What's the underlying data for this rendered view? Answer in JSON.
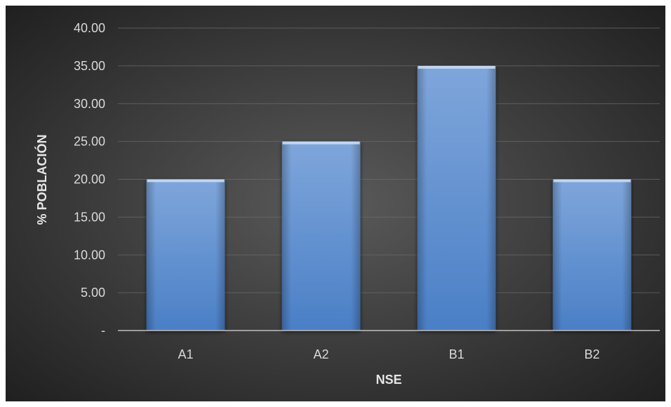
{
  "chart_data": {
    "type": "bar",
    "categories": [
      "A1",
      "A2",
      "B1",
      "B2"
    ],
    "values": [
      20,
      25,
      35,
      20
    ],
    "xlabel": "NSE",
    "ylabel": "% POBLACIÓN",
    "ylim": [
      0,
      40
    ],
    "ytick_labels": [
      "-",
      "5.00",
      "10.00",
      "15.00",
      "20.00",
      "25.00",
      "30.00",
      "35.00",
      "40.00"
    ],
    "grid": true,
    "legend": "none",
    "colors": {
      "background_center": "#595959",
      "background_edge": "#1f1f1f",
      "bar_light": "#8fb4e3",
      "bar_mid": "#5b8fd1",
      "bar_dark": "#3f74be",
      "gridline": "#6b6b6b",
      "axis_line": "#bfbfbf",
      "text": "#d9d9d9"
    }
  }
}
